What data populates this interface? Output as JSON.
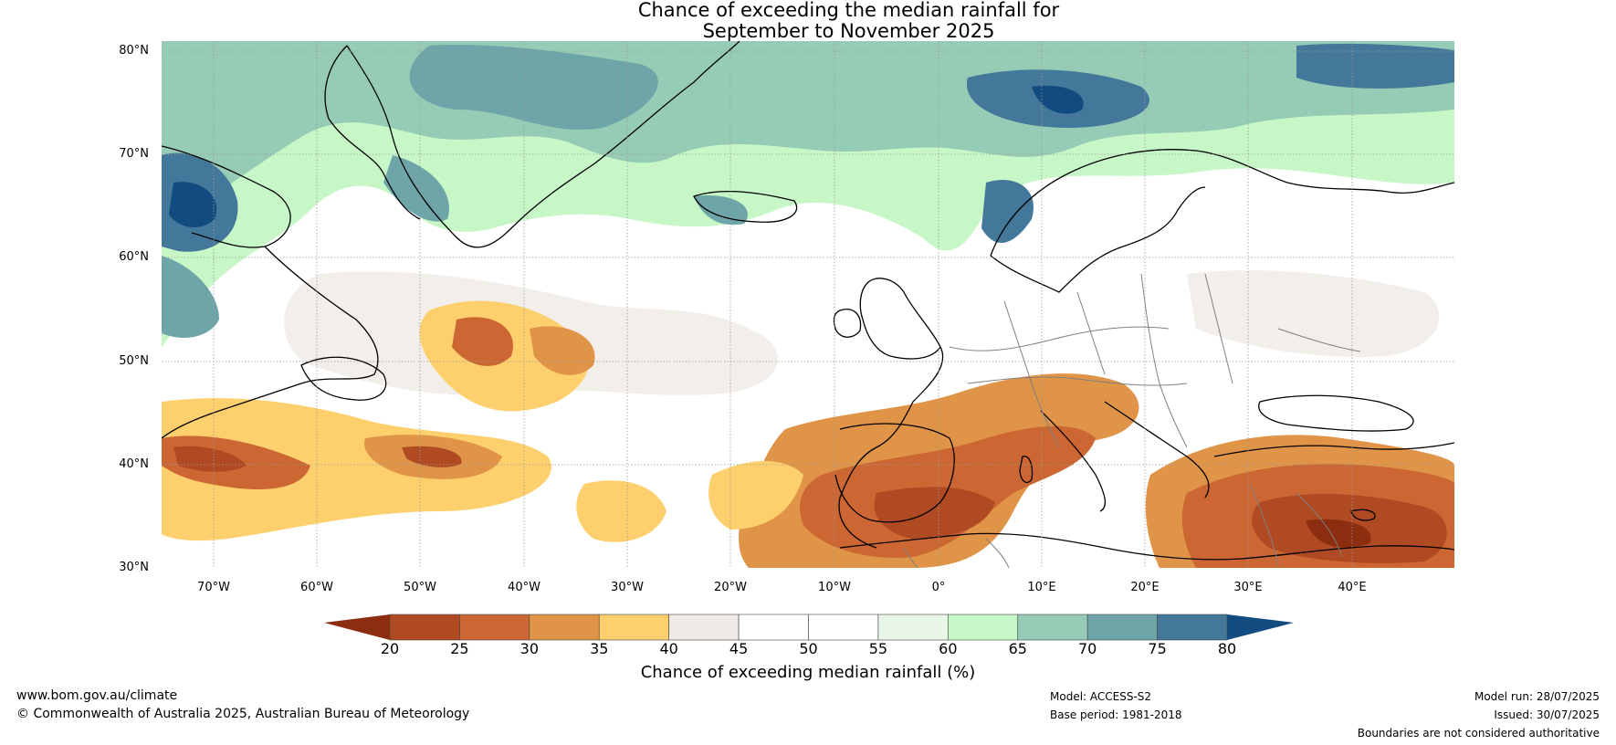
{
  "title": {
    "line1": "Chance of exceeding the median rainfall for",
    "line2": "September to November 2025"
  },
  "map": {
    "lat_labels": [
      "80°N",
      "70°N",
      "60°N",
      "50°N",
      "40°N",
      "30°N"
    ],
    "lon_labels": [
      "70°W",
      "60°W",
      "50°W",
      "40°W",
      "30°W",
      "20°W",
      "10°W",
      "0°",
      "10°E",
      "20°E",
      "30°E",
      "40°E"
    ],
    "extent": {
      "lon_min": -75,
      "lon_max": 50,
      "lat_min": 30,
      "lat_max": 81
    },
    "gridlines": true
  },
  "colorbar": {
    "label": "Chance of exceeding median rainfall (%)",
    "ticks": [
      "20",
      "25",
      "30",
      "35",
      "40",
      "45",
      "50",
      "55",
      "60",
      "65",
      "70",
      "75",
      "80"
    ],
    "colors": [
      "#8c2d0f",
      "#b04a22",
      "#cc6632",
      "#e09448",
      "#fdd06d",
      "#efeae5",
      "#ffffff",
      "#ffffff",
      "#e8f6e8",
      "#c7f7c7",
      "#96ccb6",
      "#6ea5a8",
      "#44789a",
      "#124b80"
    ]
  },
  "footer": {
    "url": "www.bom.gov.au/climate",
    "copyright": "© Commonwealth of Australia 2025, Australian Bureau of Meteorology",
    "model": "Model: ACCESS-S2",
    "base_period": "Base period: 1981-2018",
    "model_run": "Model run: 28/07/2025",
    "issued": "Issued: 30/07/2025",
    "disclaimer": "Boundaries are not considered authoritative"
  }
}
